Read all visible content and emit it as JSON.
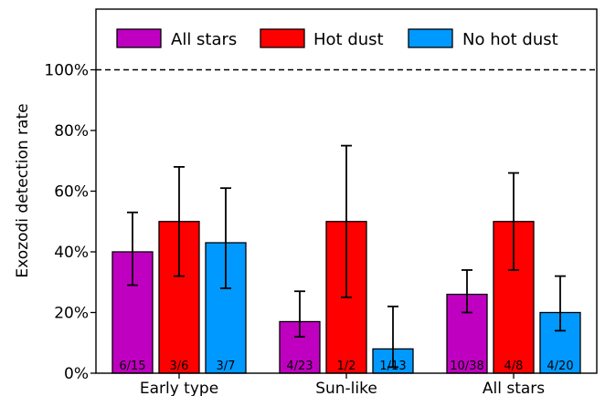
{
  "chart_data": {
    "type": "bar",
    "ylabel": "Exozodi detection rate",
    "xlabel": "",
    "ylim": [
      0,
      120
    ],
    "yticks": [
      0,
      20,
      40,
      60,
      80,
      100
    ],
    "ytick_labels": [
      "0%",
      "20%",
      "40%",
      "60%",
      "80%",
      "100%"
    ],
    "reference_line": {
      "value": 100,
      "style": "dashed"
    },
    "categories": [
      "Early type",
      "Sun-like",
      "All stars"
    ],
    "legend_position": "top",
    "series": [
      {
        "name": "All stars",
        "color": "#c000c0",
        "values": [
          40,
          17,
          26
        ],
        "err_low": [
          29,
          12,
          20
        ],
        "err_high": [
          53,
          27,
          34
        ],
        "labels": [
          "6/15",
          "4/23",
          "10/38"
        ]
      },
      {
        "name": "Hot dust",
        "color": "#ff0000",
        "values": [
          50,
          50,
          50
        ],
        "err_low": [
          32,
          25,
          34
        ],
        "err_high": [
          68,
          75,
          66
        ],
        "labels": [
          "3/6",
          "1/2",
          "4/8"
        ]
      },
      {
        "name": "No hot dust",
        "color": "#0099ff",
        "values": [
          43,
          8,
          20
        ],
        "err_low": [
          28,
          2,
          14
        ],
        "err_high": [
          61,
          22,
          32
        ],
        "labels": [
          "3/7",
          "1/13",
          "4/20"
        ]
      }
    ]
  }
}
